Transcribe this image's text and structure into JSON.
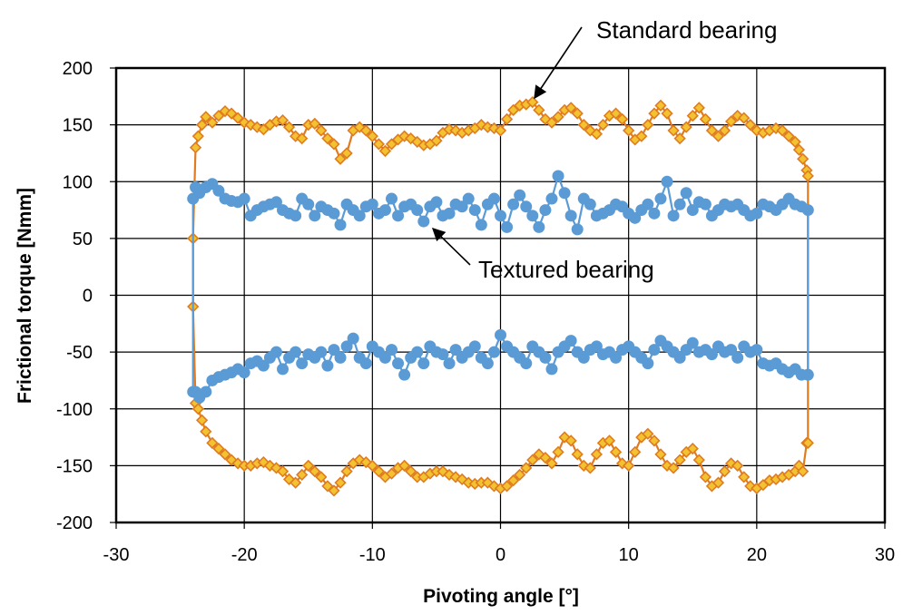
{
  "chart_data": {
    "type": "scatter",
    "xlabel": "Pivoting angle [°]",
    "ylabel": "Frictional torque [Nmm]",
    "xlim": [
      -30,
      30
    ],
    "ylim": [
      -200,
      200
    ],
    "x_ticks": [
      -30,
      -20,
      -10,
      0,
      10,
      20,
      30
    ],
    "y_ticks": [
      -200,
      -150,
      -100,
      -50,
      0,
      50,
      100,
      150,
      200
    ],
    "grid": true,
    "legend": "none",
    "annotations": [
      {
        "text": "Standard bearing",
        "target_series": "standard",
        "target": [
          2.5,
          170
        ]
      },
      {
        "text": "Textured bearing",
        "target_series": "textured",
        "target": [
          -5.3,
          57
        ]
      }
    ],
    "series": [
      {
        "id": "standard",
        "color": "#E07B20",
        "marker_fill": "#F2C230",
        "marker": "diamond",
        "upper": {
          "x": [
            -24.0,
            -23.8,
            -23.6,
            -23.3,
            -23.0,
            -22.5,
            -22.0,
            -21.5,
            -21.0,
            -20.5,
            -20.0,
            -19.5,
            -19.0,
            -18.5,
            -18.0,
            -17.5,
            -17.0,
            -16.5,
            -16.0,
            -15.5,
            -15.0,
            -14.5,
            -14.0,
            -13.5,
            -13.0,
            -12.5,
            -12.0,
            -11.5,
            -11.0,
            -10.5,
            -10.0,
            -9.5,
            -9.0,
            -8.5,
            -8.0,
            -7.5,
            -7.0,
            -6.5,
            -6.0,
            -5.5,
            -5.0,
            -4.5,
            -4.0,
            -3.5,
            -3.0,
            -2.5,
            -2.0,
            -1.5,
            -1.0,
            -0.5,
            0.0,
            0.5,
            1.0,
            1.5,
            2.0,
            2.5,
            3.0,
            3.5,
            4.0,
            4.5,
            5.0,
            5.5,
            6.0,
            6.5,
            7.0,
            7.5,
            8.0,
            8.5,
            9.0,
            9.5,
            10.0,
            10.5,
            11.0,
            11.5,
            12.0,
            12.5,
            13.0,
            13.5,
            14.0,
            14.5,
            15.0,
            15.5,
            16.0,
            16.5,
            17.0,
            17.5,
            18.0,
            18.5,
            19.0,
            19.5,
            20.0,
            20.5,
            21.0,
            21.5,
            22.0,
            22.5,
            23.0,
            23.3,
            23.6,
            23.9,
            24.0
          ],
          "y": [
            50,
            130,
            140,
            150,
            157,
            152,
            158,
            162,
            160,
            156,
            152,
            150,
            148,
            146,
            150,
            153,
            154,
            148,
            140,
            138,
            150,
            151,
            145,
            138,
            133,
            120,
            125,
            145,
            148,
            145,
            140,
            133,
            127,
            133,
            137,
            140,
            138,
            135,
            132,
            133,
            136,
            143,
            146,
            145,
            143,
            145,
            147,
            150,
            148,
            147,
            145,
            155,
            163,
            167,
            168,
            170,
            163,
            155,
            152,
            157,
            163,
            165,
            160,
            150,
            145,
            142,
            150,
            158,
            160,
            155,
            145,
            137,
            140,
            150,
            160,
            167,
            160,
            145,
            138,
            148,
            158,
            165,
            155,
            145,
            140,
            145,
            153,
            158,
            156,
            150,
            145,
            143,
            145,
            147,
            145,
            140,
            135,
            128,
            120,
            110,
            105
          ]
        },
        "lower": {
          "x": [
            -24.0,
            -23.8,
            -23.6,
            -23.3,
            -23.0,
            -22.5,
            -22.0,
            -21.5,
            -21.0,
            -20.5,
            -20.0,
            -19.5,
            -19.0,
            -18.5,
            -18.0,
            -17.5,
            -17.0,
            -16.5,
            -16.0,
            -15.5,
            -15.0,
            -14.5,
            -14.0,
            -13.5,
            -13.0,
            -12.5,
            -12.0,
            -11.5,
            -11.0,
            -10.5,
            -10.0,
            -9.5,
            -9.0,
            -8.5,
            -8.0,
            -7.5,
            -7.0,
            -6.5,
            -6.0,
            -5.5,
            -5.0,
            -4.5,
            -4.0,
            -3.5,
            -3.0,
            -2.5,
            -2.0,
            -1.5,
            -1.0,
            -0.5,
            0.0,
            0.5,
            1.0,
            1.5,
            2.0,
            2.5,
            3.0,
            3.5,
            4.0,
            4.5,
            5.0,
            5.5,
            6.0,
            6.5,
            7.0,
            7.5,
            8.0,
            8.5,
            9.0,
            9.5,
            10.0,
            10.5,
            11.0,
            11.5,
            12.0,
            12.5,
            13.0,
            13.5,
            14.0,
            14.5,
            15.0,
            15.5,
            16.0,
            16.5,
            17.0,
            17.5,
            18.0,
            18.5,
            19.0,
            19.5,
            20.0,
            20.5,
            21.0,
            21.5,
            22.0,
            22.5,
            23.0,
            23.3,
            23.6,
            23.9,
            24.0
          ],
          "y": [
            -10,
            -95,
            -100,
            -110,
            -120,
            -130,
            -135,
            -140,
            -145,
            -148,
            -150,
            -150,
            -148,
            -147,
            -150,
            -152,
            -155,
            -162,
            -165,
            -158,
            -150,
            -155,
            -160,
            -168,
            -172,
            -165,
            -155,
            -148,
            -145,
            -147,
            -150,
            -155,
            -160,
            -157,
            -152,
            -150,
            -155,
            -160,
            -160,
            -157,
            -155,
            -155,
            -158,
            -160,
            -162,
            -165,
            -166,
            -165,
            -165,
            -168,
            -170,
            -168,
            -163,
            -158,
            -152,
            -145,
            -140,
            -143,
            -148,
            -138,
            -125,
            -128,
            -140,
            -150,
            -152,
            -140,
            -130,
            -128,
            -138,
            -148,
            -150,
            -138,
            -125,
            -122,
            -128,
            -140,
            -150,
            -152,
            -145,
            -138,
            -135,
            -145,
            -160,
            -168,
            -165,
            -155,
            -148,
            -150,
            -160,
            -168,
            -170,
            -167,
            -163,
            -162,
            -160,
            -158,
            -155,
            -150,
            -155,
            -130,
            -130
          ]
        }
      },
      {
        "id": "textured",
        "color": "#5B9BD5",
        "marker_fill": "#5B9BD5",
        "marker": "circle",
        "upper": {
          "x": [
            -24.0,
            -23.8,
            -23.5,
            -23.0,
            -22.5,
            -22.0,
            -21.5,
            -21.0,
            -20.5,
            -20.0,
            -19.5,
            -19.0,
            -18.5,
            -18.0,
            -17.5,
            -17.0,
            -16.5,
            -16.0,
            -15.5,
            -15.0,
            -14.5,
            -14.0,
            -13.5,
            -13.0,
            -12.5,
            -12.0,
            -11.5,
            -11.0,
            -10.5,
            -10.0,
            -9.5,
            -9.0,
            -8.5,
            -8.0,
            -7.5,
            -7.0,
            -6.5,
            -6.0,
            -5.5,
            -5.0,
            -4.5,
            -4.0,
            -3.5,
            -3.0,
            -2.5,
            -2.0,
            -1.5,
            -1.0,
            -0.5,
            0.0,
            0.5,
            1.0,
            1.5,
            2.0,
            2.5,
            3.0,
            3.5,
            4.0,
            4.5,
            5.0,
            5.5,
            6.0,
            6.5,
            7.0,
            7.5,
            8.0,
            8.5,
            9.0,
            9.5,
            10.0,
            10.5,
            11.0,
            11.5,
            12.0,
            12.5,
            13.0,
            13.5,
            14.0,
            14.5,
            15.0,
            15.5,
            16.0,
            16.5,
            17.0,
            17.5,
            18.0,
            18.5,
            19.0,
            19.5,
            20.0,
            20.5,
            21.0,
            21.5,
            22.0,
            22.5,
            23.0,
            23.5,
            24.0
          ],
          "y": [
            85,
            95,
            90,
            95,
            98,
            92,
            85,
            83,
            82,
            85,
            70,
            75,
            78,
            80,
            82,
            75,
            72,
            70,
            85,
            80,
            70,
            78,
            75,
            72,
            62,
            80,
            75,
            70,
            78,
            80,
            72,
            75,
            85,
            70,
            78,
            80,
            75,
            65,
            78,
            82,
            70,
            72,
            80,
            78,
            85,
            75,
            62,
            80,
            85,
            70,
            60,
            80,
            88,
            78,
            70,
            60,
            75,
            85,
            105,
            90,
            70,
            58,
            85,
            80,
            70,
            72,
            75,
            80,
            78,
            72,
            68,
            75,
            80,
            72,
            85,
            100,
            70,
            80,
            90,
            75,
            82,
            80,
            70,
            75,
            80,
            78,
            80,
            75,
            70,
            72,
            80,
            78,
            75,
            80,
            85,
            80,
            78,
            75
          ]
        },
        "lower": {
          "x": [
            -24.0,
            -23.8,
            -23.5,
            -23.0,
            -22.5,
            -22.0,
            -21.5,
            -21.0,
            -20.5,
            -20.0,
            -19.5,
            -19.0,
            -18.5,
            -18.0,
            -17.5,
            -17.0,
            -16.5,
            -16.0,
            -15.5,
            -15.0,
            -14.5,
            -14.0,
            -13.5,
            -13.0,
            -12.5,
            -12.0,
            -11.5,
            -11.0,
            -10.5,
            -10.0,
            -9.5,
            -9.0,
            -8.5,
            -8.0,
            -7.5,
            -7.0,
            -6.5,
            -6.0,
            -5.5,
            -5.0,
            -4.5,
            -4.0,
            -3.5,
            -3.0,
            -2.5,
            -2.0,
            -1.5,
            -1.0,
            -0.5,
            0.0,
            0.5,
            1.0,
            1.5,
            2.0,
            2.5,
            3.0,
            3.5,
            4.0,
            4.5,
            5.0,
            5.5,
            6.0,
            6.5,
            7.0,
            7.5,
            8.0,
            8.5,
            9.0,
            9.5,
            10.0,
            10.5,
            11.0,
            11.5,
            12.0,
            12.5,
            13.0,
            13.5,
            14.0,
            14.5,
            15.0,
            15.5,
            16.0,
            16.5,
            17.0,
            17.5,
            18.0,
            18.5,
            19.0,
            19.5,
            20.0,
            20.5,
            21.0,
            21.5,
            22.0,
            22.5,
            23.0,
            23.5,
            24.0
          ],
          "y": [
            -85,
            -85,
            -90,
            -85,
            -75,
            -72,
            -70,
            -68,
            -65,
            -68,
            -60,
            -58,
            -62,
            -55,
            -50,
            -65,
            -55,
            -50,
            -60,
            -52,
            -55,
            -50,
            -62,
            -48,
            -55,
            -45,
            -38,
            -55,
            -60,
            -45,
            -50,
            -55,
            -48,
            -60,
            -70,
            -55,
            -50,
            -60,
            -45,
            -50,
            -52,
            -60,
            -48,
            -55,
            -50,
            -45,
            -55,
            -60,
            -50,
            -35,
            -45,
            -50,
            -55,
            -60,
            -45,
            -50,
            -55,
            -65,
            -50,
            -45,
            -40,
            -50,
            -55,
            -48,
            -45,
            -52,
            -50,
            -55,
            -48,
            -45,
            -50,
            -55,
            -60,
            -48,
            -40,
            -45,
            -50,
            -55,
            -48,
            -42,
            -50,
            -48,
            -52,
            -45,
            -50,
            -48,
            -55,
            -45,
            -50,
            -48,
            -60,
            -62,
            -60,
            -65,
            -68,
            -65,
            -70,
            -70
          ]
        }
      }
    ]
  }
}
